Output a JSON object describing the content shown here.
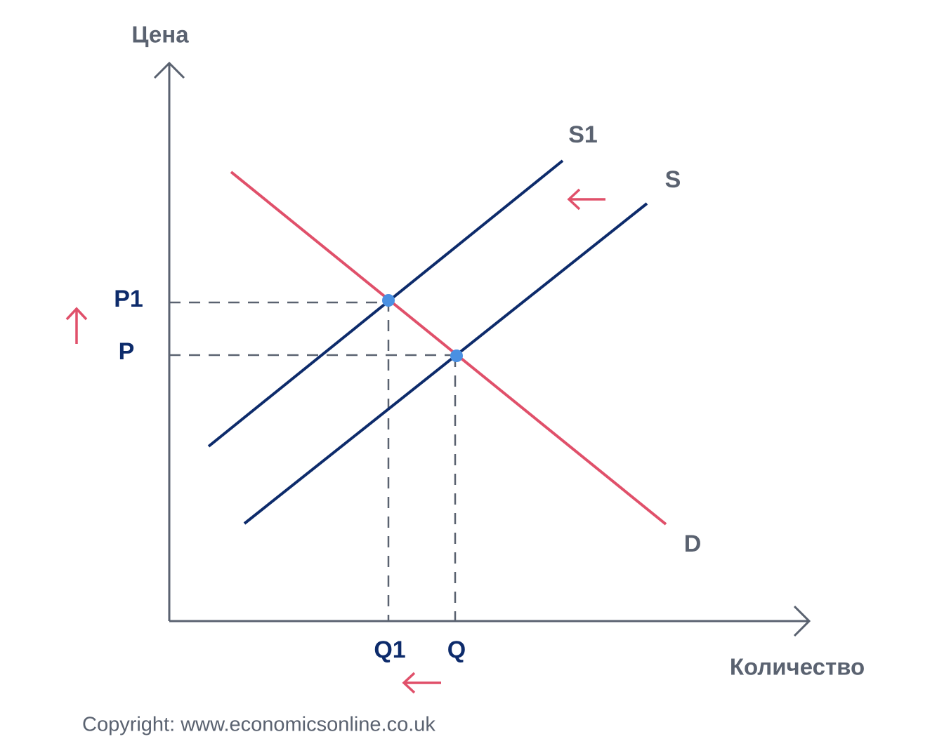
{
  "axes": {
    "y_label": "Цена",
    "x_label": "Количество"
  },
  "curves": {
    "shifted_supply": "S1",
    "supply": "S",
    "demand": "D"
  },
  "prices": [
    "P1",
    "P"
  ],
  "quantities": [
    "Q1",
    "Q"
  ],
  "footer": "Copyright: www.economicsonline.co.uk"
}
